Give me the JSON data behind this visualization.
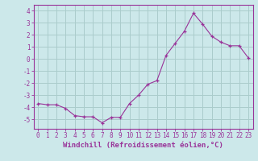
{
  "x": [
    0,
    1,
    2,
    3,
    4,
    5,
    6,
    7,
    8,
    9,
    10,
    11,
    12,
    13,
    14,
    15,
    16,
    17,
    18,
    19,
    20,
    21,
    22,
    23
  ],
  "y": [
    -3.7,
    -3.8,
    -3.8,
    -4.1,
    -4.7,
    -4.8,
    -4.8,
    -5.3,
    -4.85,
    -4.85,
    -3.7,
    -3.0,
    -2.1,
    -1.8,
    0.3,
    1.3,
    2.3,
    3.8,
    2.9,
    1.9,
    1.4,
    1.1,
    1.1,
    0.1
  ],
  "line_color": "#993399",
  "marker": "+",
  "bg_color": "#cce8ea",
  "grid_color": "#aacccc",
  "font_color": "#993399",
  "axis_color": "#993399",
  "ylim": [
    -5.8,
    4.5
  ],
  "xlim": [
    -0.5,
    23.5
  ],
  "yticks": [
    -5,
    -4,
    -3,
    -2,
    -1,
    0,
    1,
    2,
    3,
    4
  ],
  "xticks": [
    0,
    1,
    2,
    3,
    4,
    5,
    6,
    7,
    8,
    9,
    10,
    11,
    12,
    13,
    14,
    15,
    16,
    17,
    18,
    19,
    20,
    21,
    22,
    23
  ],
  "xlabel": "Windchill (Refroidissement éolien,°C)",
  "tick_fontsize": 5.5,
  "label_fontsize": 6.5
}
